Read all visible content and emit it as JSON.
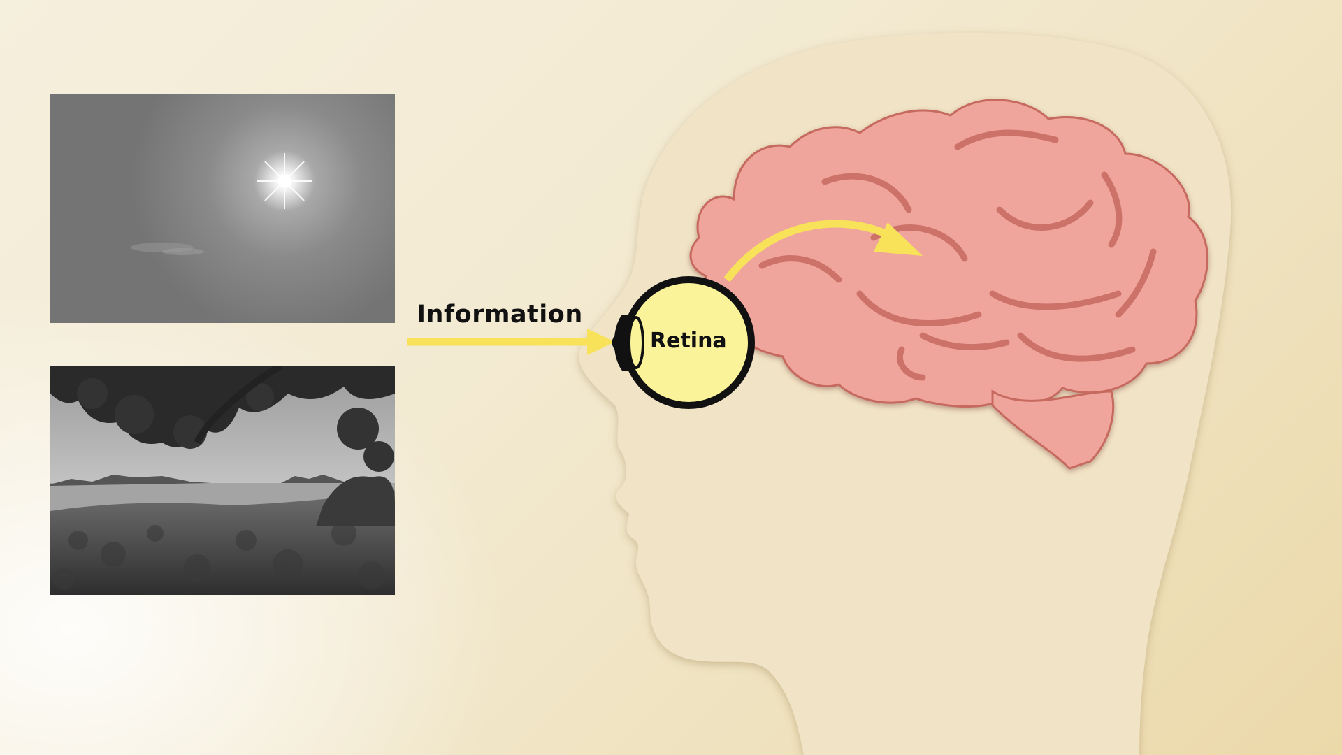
{
  "diagram": {
    "title": "",
    "labels": {
      "information": "Information",
      "retina": "Retina"
    },
    "images": [
      {
        "name": "sun-in-sky",
        "description_tag": "photo"
      },
      {
        "name": "beach-under-tree",
        "description_tag": "photo"
      }
    ],
    "colors": {
      "head": "#f1e4c6",
      "head_outline": "#d9c7a0",
      "brain": "#f0a59c",
      "brain_outline": "#c66a60",
      "arrow": "#f7e25a",
      "eye": "#fbf39a",
      "eye_outline": "#111111"
    }
  }
}
